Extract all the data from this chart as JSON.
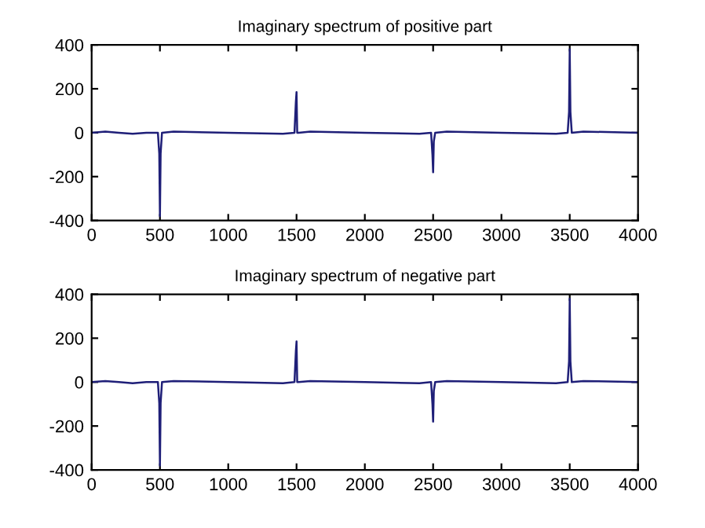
{
  "chart_data": [
    {
      "type": "line",
      "title": "Imaginary spectrum of positive part",
      "xlim": [
        0,
        4000
      ],
      "ylim": [
        -400,
        400
      ],
      "xticks": [
        0,
        500,
        1000,
        1500,
        2000,
        2500,
        3000,
        3500,
        4000
      ],
      "yticks": [
        -400,
        -200,
        0,
        200,
        400
      ],
      "grid": false,
      "legend": false,
      "series": [
        {
          "color": "#1f1f78",
          "x": [
            0,
            100,
            200,
            300,
            400,
            485,
            495,
            500,
            505,
            515,
            600,
            1000,
            1400,
            1485,
            1495,
            1500,
            1505,
            1515,
            1600,
            2000,
            2400,
            2485,
            2495,
            2500,
            2505,
            2515,
            2600,
            3000,
            3400,
            3485,
            3495,
            3500,
            3505,
            3515,
            3600,
            4000
          ],
          "values": [
            0,
            5,
            0,
            -5,
            0,
            0,
            -95,
            -380,
            -95,
            0,
            5,
            0,
            -5,
            0,
            140,
            185,
            0,
            0,
            5,
            0,
            -5,
            0,
            -100,
            -180,
            -40,
            0,
            5,
            0,
            -5,
            0,
            95,
            380,
            95,
            0,
            5,
            0
          ]
        }
      ]
    },
    {
      "type": "line",
      "title": "Imaginary spectrum of negative part",
      "xlim": [
        0,
        4000
      ],
      "ylim": [
        -400,
        400
      ],
      "xticks": [
        0,
        500,
        1000,
        1500,
        2000,
        2500,
        3000,
        3500,
        4000
      ],
      "yticks": [
        -400,
        -200,
        0,
        200,
        400
      ],
      "grid": false,
      "legend": false,
      "series": [
        {
          "color": "#1f1f78",
          "x": [
            0,
            100,
            200,
            300,
            400,
            485,
            495,
            500,
            505,
            515,
            600,
            1000,
            1400,
            1485,
            1495,
            1500,
            1505,
            1515,
            1600,
            2000,
            2400,
            2485,
            2495,
            2500,
            2505,
            2515,
            2600,
            3000,
            3400,
            3485,
            3495,
            3500,
            3505,
            3515,
            3600,
            4000
          ],
          "values": [
            0,
            5,
            0,
            -5,
            0,
            0,
            -95,
            -380,
            -95,
            0,
            5,
            0,
            -5,
            0,
            140,
            185,
            0,
            0,
            5,
            0,
            -5,
            0,
            -100,
            -180,
            -40,
            0,
            5,
            0,
            -5,
            0,
            95,
            380,
            95,
            0,
            5,
            0
          ]
        }
      ]
    }
  ]
}
